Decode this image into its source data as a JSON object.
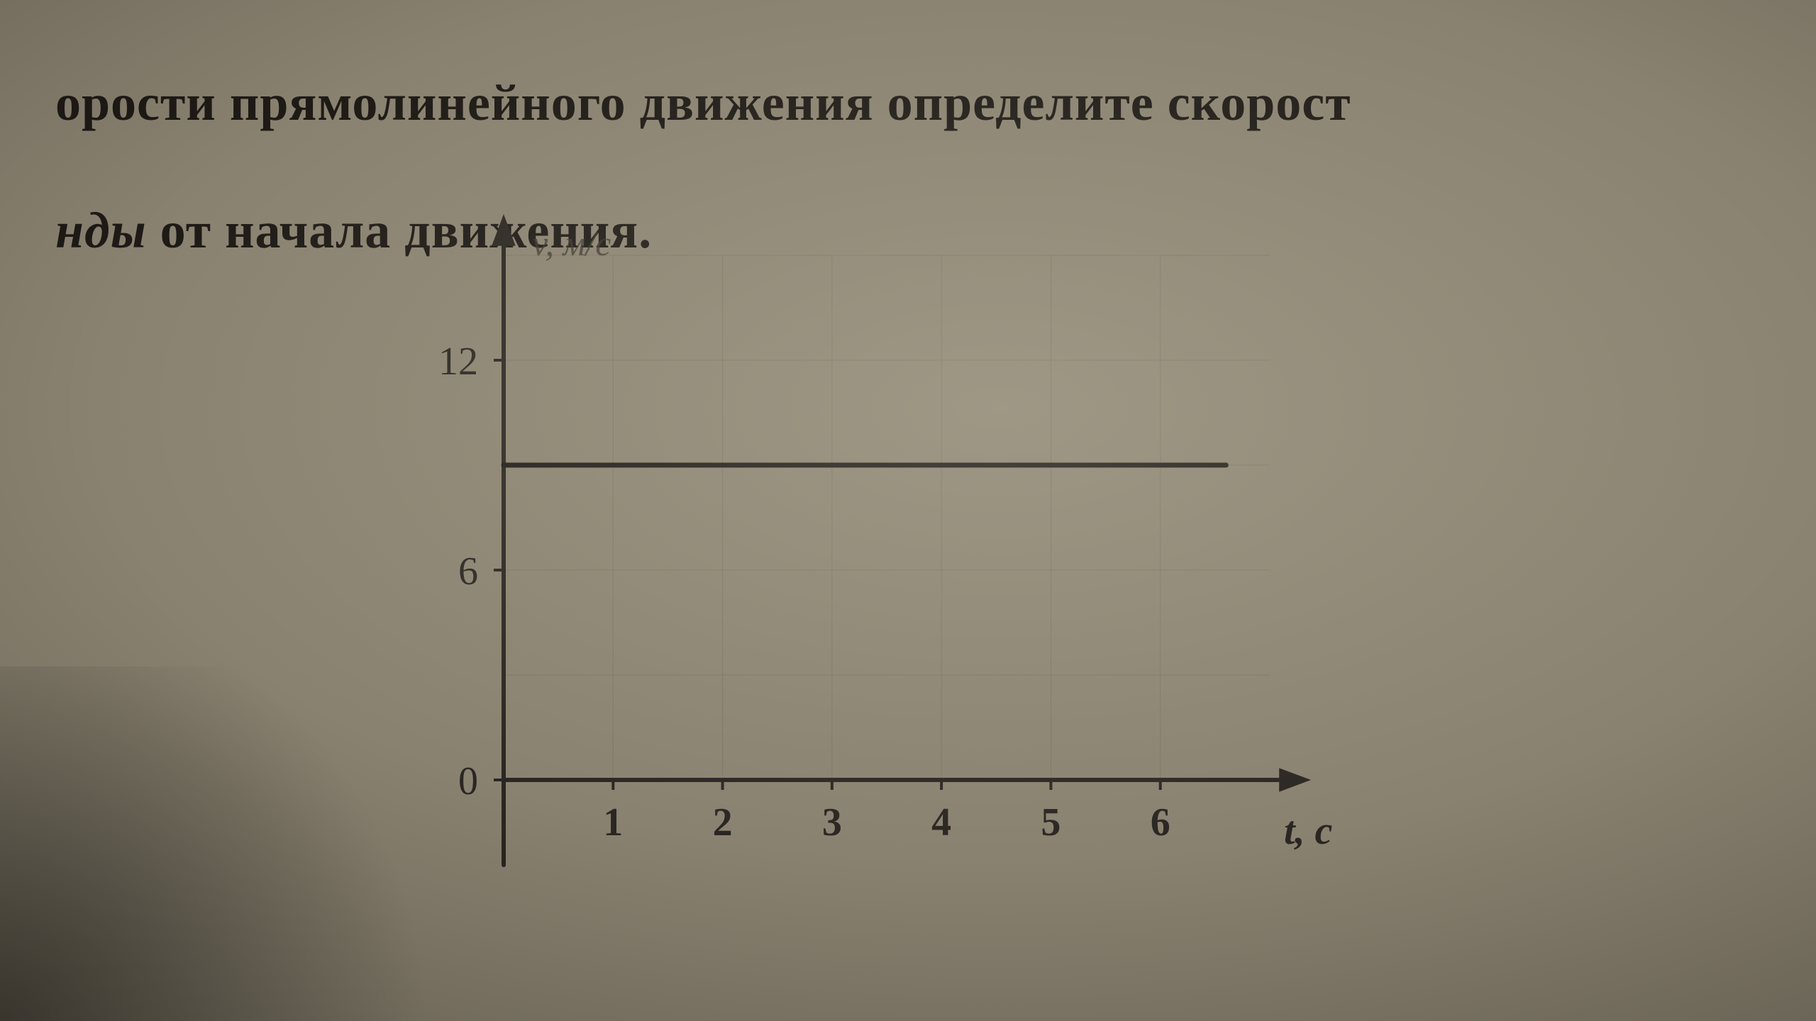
{
  "text": {
    "line1": "орости прямолинейного движения определите скорост",
    "line2_italic": "нды",
    "line2_rest": " от начала движения."
  },
  "chart": {
    "type": "line",
    "background_color": "#8a8270",
    "axis_color": "#2a2622",
    "axis_width": 6,
    "grid_color": "#6f695a",
    "grid_width": 1,
    "x": {
      "label": "t, с",
      "min": 0,
      "max": 7,
      "ticks": [
        1,
        2,
        3,
        4,
        5,
        6
      ],
      "tick_fontsize": 56
    },
    "y": {
      "label": "v, м/с",
      "min": 0,
      "max": 15,
      "ticks": [
        0,
        6,
        12
      ],
      "tick_fontsize": 56
    },
    "series": {
      "color": "#201c18",
      "width": 7,
      "y_value": 9,
      "x_start": 0,
      "x_end": 6.6
    },
    "label_fontsize": 50,
    "arrow_size": 28
  }
}
